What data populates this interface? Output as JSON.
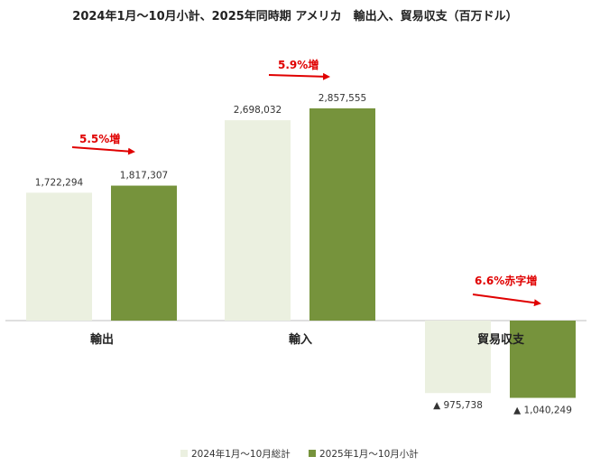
{
  "chart_data": {
    "type": "bar",
    "title": "2024年1月〜10月小計、2025年同時期 アメリカ　輸出入、貿易収支（百万ドル）",
    "categories": [
      "輸出",
      "輸入",
      "貿易収支"
    ],
    "series": [
      {
        "name": "2024年1月〜10月総計",
        "values": [
          1722294,
          2698032,
          -975738
        ],
        "color": "#ebf0e0"
      },
      {
        "name": "2025年1月〜10月小計",
        "values": [
          1817307,
          2857555,
          -1040249
        ],
        "color": "#76933c"
      }
    ],
    "data_labels": [
      [
        "1,722,294",
        "2,698,032",
        "▲ 975,738"
      ],
      [
        "1,817,307",
        "2,857,555",
        "▲ 1,040,249"
      ]
    ],
    "annotations": [
      "5.5%増",
      "5.9%増",
      "6.6%赤字増"
    ],
    "annotation_color": "#e00000",
    "ylim": [
      -1100000,
      3000000
    ],
    "grid": false,
    "legend_position": "bottom"
  }
}
